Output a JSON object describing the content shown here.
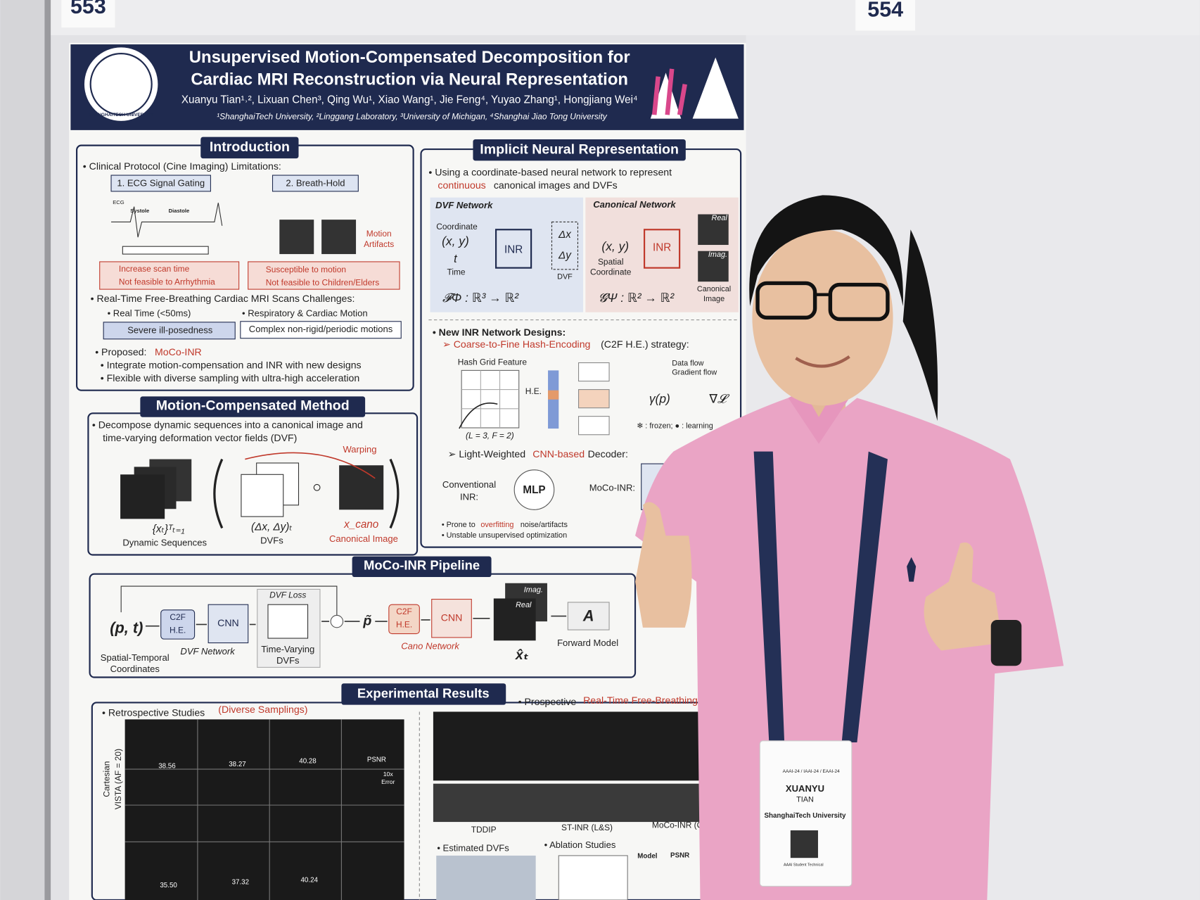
{
  "booths": [
    "553",
    "554"
  ],
  "poster": {
    "title": [
      "Unsupervised Motion-Compensated Decomposition for",
      "Cardiac MRI Reconstruction via Neural Representation"
    ],
    "authors": "Xuanyu Tian¹˒², Lixuan Chen³, Qing Wu¹, Xiao Wang¹, Jie Feng⁴, Yuyao Zhang¹, Hongjiang Wei⁴",
    "affiliations": "¹ShanghaiTech University, ²Linggang Laboratory, ³University of Michigan, ⁴Shanghai Jiao Tong University",
    "logo_text": "SHANGHAITECH UNIVERSITY",
    "introduction": {
      "heading": "Introduction",
      "protocol": "• Clinical Protocol (Cine Imaging) Limitations:",
      "tags": [
        "1. ECG Signal Gating",
        "2. Breath-Hold"
      ],
      "ecg_labels": [
        "ECG",
        "Systole",
        "Diastole"
      ],
      "artifacts": [
        "Motion",
        "Artifacts"
      ],
      "drawbacks": [
        "Increase scan time",
        "Not feasible to Arrhythmia",
        "Susceptible to motion",
        "Not feasible to Children/Elders"
      ],
      "challenges": "• Real-Time Free-Breathing Cardiac MRI Scans Challenges:",
      "challenge_items": [
        "• Real Time (<50ms)",
        "• Respiratory & Cardiac Motion"
      ],
      "challenge_boxes": [
        "Severe ill-posedness",
        "Complex non-rigid/periodic motions"
      ],
      "proposed": "• Proposed:",
      "method_name": "MoCo-INR",
      "points": [
        "• Integrate motion-compensation and INR with new designs",
        "• Flexible with diverse sampling with ultra-high acceleration"
      ]
    },
    "method": {
      "heading": "Motion-Compensated Method",
      "description": [
        "• Decompose dynamic sequences into a canonical image and",
        "time-varying deformation vector fields (DVF)"
      ],
      "warping": "Warping",
      "symbols": [
        "{xₜ}ᵀₜ₌₁",
        "(Δx, Δy)ₜ",
        "x_cano"
      ],
      "labels": [
        "Dynamic Sequences",
        "DVFs",
        "Canonical Image"
      ]
    },
    "inr": {
      "heading": "Implicit Neural Representation",
      "description": "• Using a coordinate-based neural network to represent",
      "highlight": "continuous",
      "description_rest": "canonical images and DVFs",
      "networks": [
        "DVF Network",
        "Canonical Network"
      ],
      "dvf_labels": [
        "Coordinate",
        "(x, y)",
        "t",
        "Time",
        "Δx",
        "Δy",
        "DVF",
        "INR",
        "𝓕Φ : ℝ³ → ℝ²"
      ],
      "cano_labels": [
        "(x, y)",
        "Spatial",
        "Coordinate",
        "INR",
        "Real",
        "Imag.",
        "Canonical",
        "Image",
        "𝓖Ψ : ℝ² → ℝ²"
      ],
      "designs": "• New INR Network Designs:",
      "c2f": "➢ Coarse-to-Fine Hash-Encoding",
      "c2f_rest": "(C2F H.E.) strategy:",
      "hash_grid": "Hash Grid Feature",
      "grid_params": "(L = 3, F = 2)",
      "he": "H.E.",
      "gamma": "γ(p)",
      "grad": "∇𝓛",
      "flows": [
        "Data flow",
        "Gradient flow"
      ],
      "legend": "❄ : frozen;  ● : learning",
      "decoder": "➢ Light-Weighted",
      "decoder_highlight": "CNN-based",
      "decoder_rest": "Decoder:",
      "conventional": [
        "Conventional",
        "INR:"
      ],
      "mlp": "MLP",
      "moco": "MoCo-INR:",
      "cons_prefix": "• Prone to",
      "cons_highlight": "overfitting",
      "cons_rest": "noise/artifacts",
      "cons2": "• Unstable unsupervised optimization"
    },
    "pipeline": {
      "heading": "MoCo-INR Pipeline",
      "input": "(p, t)",
      "input_labels": [
        "Spatial-Temporal",
        "Coordinates"
      ],
      "blocks": [
        "C2F",
        "H.E.",
        "CNN"
      ],
      "dvf_network": "DVF Network",
      "dvf_loss": "DVF Loss",
      "dvf_out": [
        "Time-Varying",
        "DVFs"
      ],
      "p_tilde": "p̃",
      "cano_network": "Cano Network",
      "images": [
        "Imag.",
        "Real"
      ],
      "x_hat": "x̂ₜ",
      "forward": "Forward Model",
      "operator": "A"
    },
    "results": {
      "heading": "Experimental Results",
      "retrospective": "• Retrospective Studies",
      "retro_highlight": "(Diverse Samplings)",
      "prospective": "• Prospective",
      "pro_highlight": "Real-Time Free-Breathing Scans",
      "row_labels": [
        "Cartesian",
        "VISTA (AF = 20)"
      ],
      "psnr_top": [
        "38.56",
        "38.27",
        "40.28"
      ],
      "psnr_bottom": [
        "35.50",
        "37.32",
        "40.24"
      ],
      "psnr": "PSNR",
      "error": [
        "10x",
        "Error"
      ],
      "methods": [
        "TDDIP",
        "ST-INR (L&S)",
        "MoCo-INR (Ours)"
      ],
      "estimated": "• Estimated DVFs",
      "ablation": "• Ablation Studies",
      "table_head": [
        "Model",
        "PSNR"
      ]
    }
  },
  "badge": {
    "event": "AAAI-24 / IAAI-24 / EAAI-24",
    "first_name": "XUANYU",
    "last_name": "TIAN",
    "affiliation": "ShanghaiTech University",
    "role": "AAAI Student Technical"
  }
}
